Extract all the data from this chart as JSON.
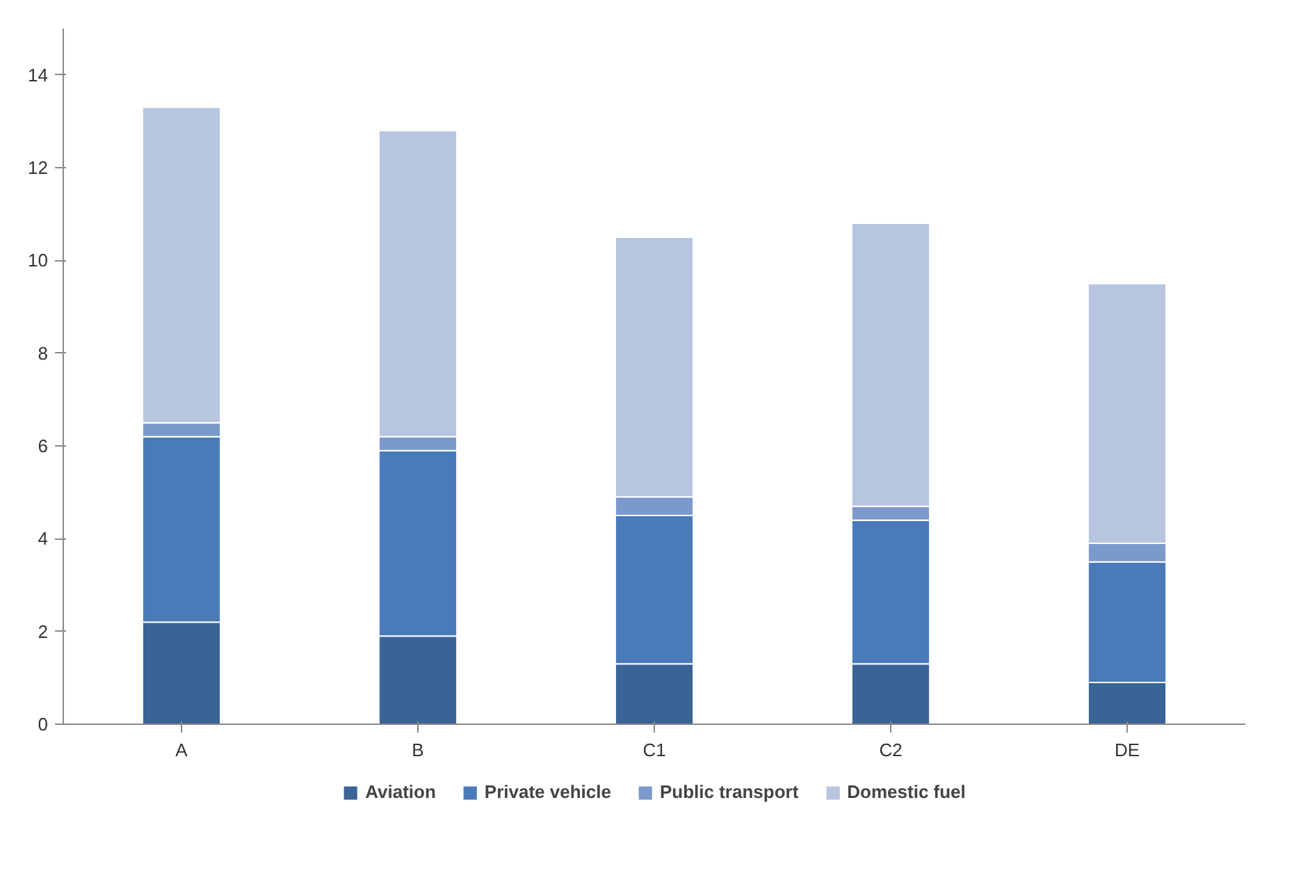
{
  "chart_data": {
    "type": "bar",
    "stacked": true,
    "categories": [
      "A",
      "B",
      "C1",
      "C2",
      "DE"
    ],
    "series": [
      {
        "name": "Aviation",
        "color": "#3b6496",
        "values": [
          2.2,
          1.9,
          1.3,
          1.3,
          0.9
        ]
      },
      {
        "name": "Private vehicle",
        "color": "#4a7ab8",
        "values": [
          4.0,
          4.0,
          3.2,
          3.1,
          2.6
        ]
      },
      {
        "name": "Public transport",
        "color": "#7b9acb",
        "values": [
          0.3,
          0.3,
          0.4,
          0.3,
          0.4
        ]
      },
      {
        "name": "Domestic fuel",
        "color": "#b7c5e0",
        "values": [
          6.8,
          6.6,
          5.6,
          6.1,
          5.6
        ]
      }
    ],
    "ylim": [
      0,
      15
    ],
    "yticks": [
      0,
      2,
      4,
      6,
      8,
      10,
      12,
      14
    ],
    "grid": false,
    "legend": "bottom"
  }
}
